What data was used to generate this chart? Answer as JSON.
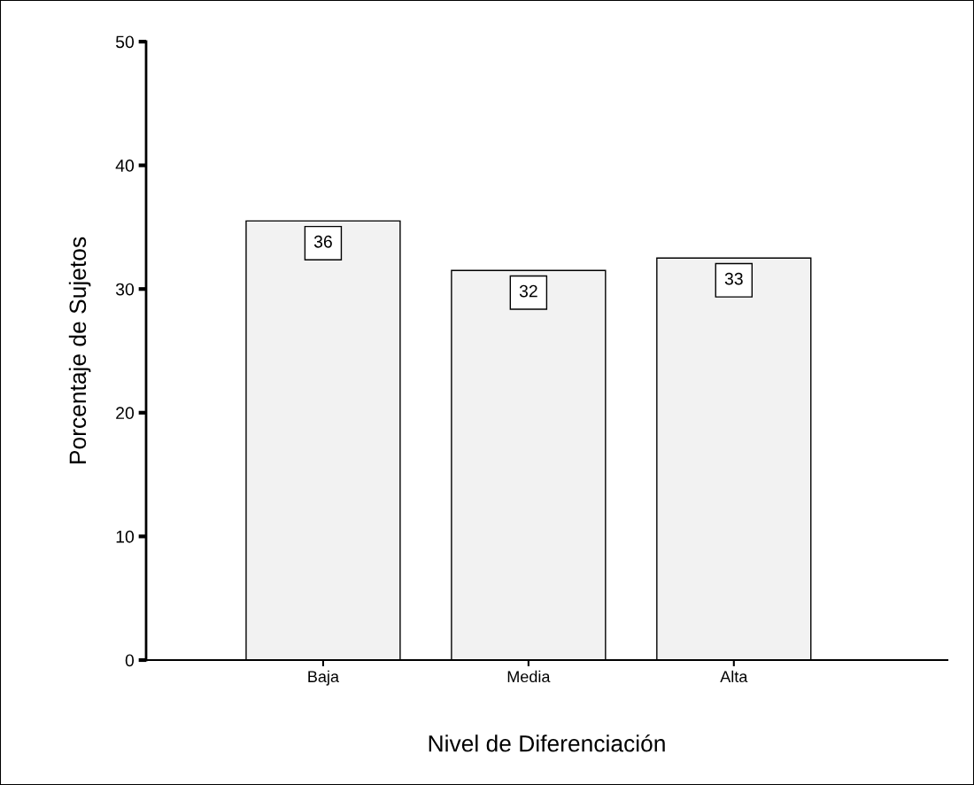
{
  "chart_data": {
    "type": "bar",
    "xlabel": "Nivel de Diferenciación",
    "ylabel": "Porcentaje de Sujetos",
    "categories": [
      "Baja",
      "Media",
      "Alta"
    ],
    "values": [
      35.5,
      31.5,
      32.5
    ],
    "value_labels": [
      "36",
      "32",
      "33"
    ],
    "color": "#f2f2f2",
    "ylim": [
      0,
      50
    ],
    "yticks": [
      0,
      10,
      20,
      30,
      40,
      50
    ],
    "grid": false,
    "legend": false
  }
}
